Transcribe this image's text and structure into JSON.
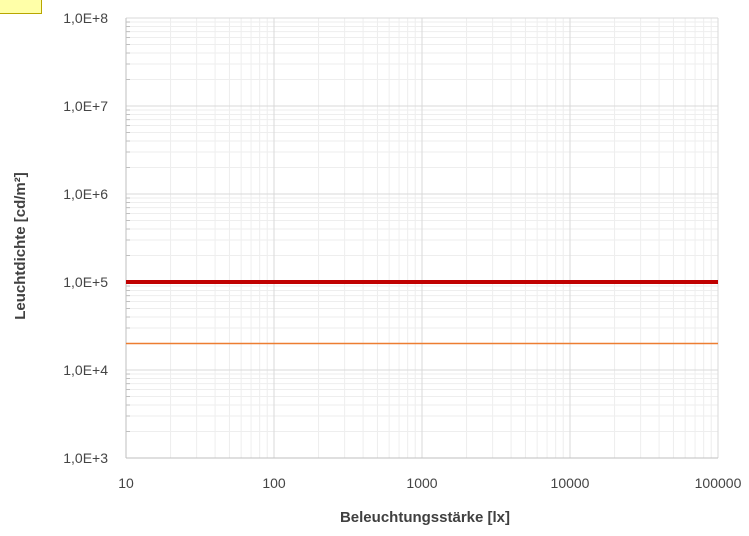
{
  "chart_data": {
    "type": "line",
    "title": "",
    "xlabel": "Beleuchtungsstärke [lx]",
    "ylabel": "Leuchtdichte [cd/m²]",
    "x_scale": "log",
    "y_scale": "log",
    "xlim": [
      10,
      100000
    ],
    "ylim": [
      1000,
      100000000
    ],
    "x_tick_values": [
      10,
      100,
      1000,
      10000,
      100000
    ],
    "x_tick_labels": [
      "10",
      "100",
      "1000",
      "10000",
      "100000"
    ],
    "y_tick_values": [
      1000,
      10000,
      100000,
      1000000,
      10000000,
      100000000
    ],
    "y_tick_labels": [
      "1,0E+3",
      "1,0E+4",
      "1,0E+5",
      "1,0E+6",
      "1,0E+7",
      "1,0E+8"
    ],
    "grid": true,
    "legend": "none",
    "series": [
      {
        "x": [
          10,
          100000
        ],
        "y": [
          100000,
          100000
        ],
        "color": "#c00000"
      },
      {
        "x": [
          10,
          100000
        ],
        "y": [
          20000,
          20000
        ],
        "color": "#ed7d31"
      }
    ]
  },
  "colors": {
    "grid_major": "#d9d9d9",
    "grid_minor": "#eeeeee",
    "corner_note": "#ffffa8"
  }
}
